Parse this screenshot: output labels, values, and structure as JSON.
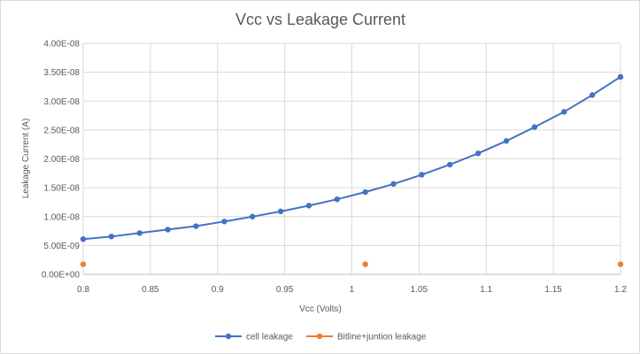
{
  "chart_data": {
    "type": "scatter",
    "title": "Vcc vs Leakage Current",
    "xlabel": "Vcc (Volts)",
    "ylabel": "Leakage Current (A)",
    "xlim": [
      0.8,
      1.2
    ],
    "ylim": [
      0,
      4e-08
    ],
    "x_ticks": [
      "0.8",
      "0.85",
      "0.9",
      "0.95",
      "1",
      "1.05",
      "1.1",
      "1.15",
      "1.2"
    ],
    "y_ticks": [
      "0.00E+00",
      "5.00E-09",
      "1.00E-08",
      "1.50E-08",
      "2.00E-08",
      "2.50E-08",
      "3.00E-08",
      "3.50E-08",
      "4.00E-08"
    ],
    "grid": true,
    "legend_position": "bottom",
    "series": [
      {
        "name": "cell leakage",
        "color": "#4472C4",
        "style": "line-marker",
        "x": [
          0.8,
          0.821,
          0.842,
          0.863,
          0.884,
          0.905,
          0.926,
          0.947,
          0.968,
          0.989,
          1.01,
          1.031,
          1.052,
          1.073,
          1.094,
          1.115,
          1.136,
          1.158,
          1.179,
          1.2
        ],
        "y": [
          6.1e-09,
          6.55e-09,
          7.15e-09,
          7.75e-09,
          8.35e-09,
          9.15e-09,
          1e-08,
          1.09e-08,
          1.19e-08,
          1.3e-08,
          1.425e-08,
          1.565e-08,
          1.725e-08,
          1.9e-08,
          2.095e-08,
          2.31e-08,
          2.55e-08,
          2.815e-08,
          3.105e-08,
          3.42e-08
        ]
      },
      {
        "name": "Bitline+juntion leakage",
        "color": "#ED7D31",
        "style": "marker",
        "x": [
          0.8,
          1.01,
          1.2
        ],
        "y": [
          1.75e-09,
          1.75e-09,
          1.75e-09
        ]
      }
    ]
  }
}
